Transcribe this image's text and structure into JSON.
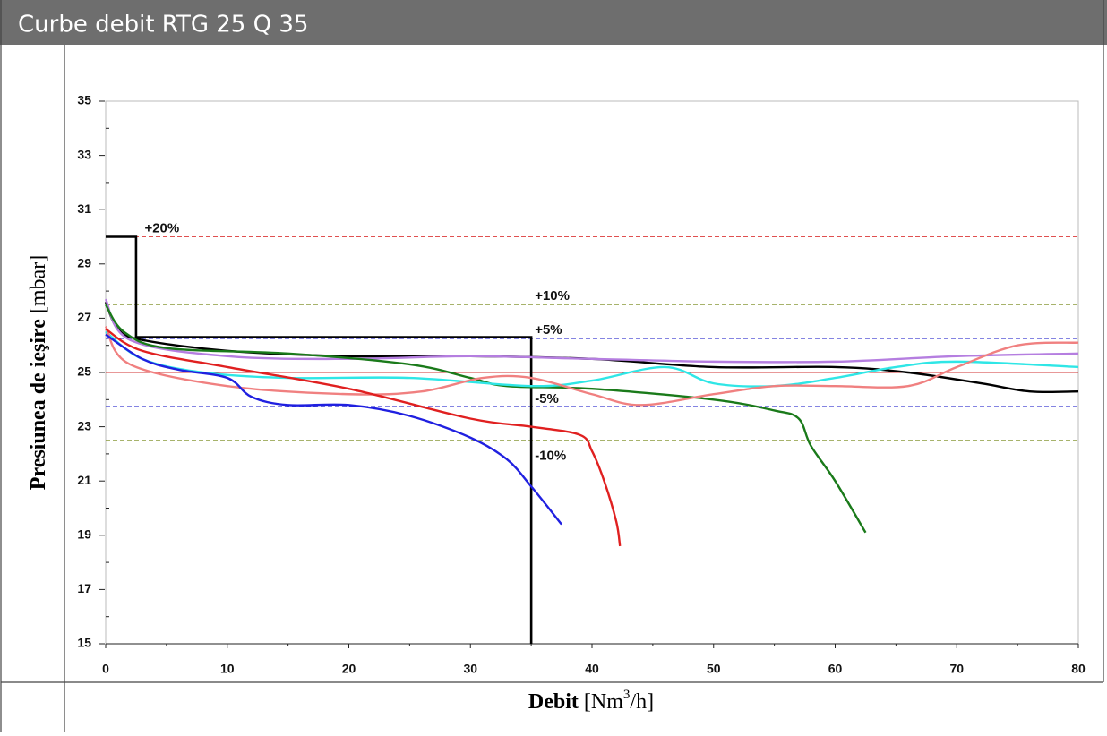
{
  "chart_data": {
    "type": "line",
    "title": "Curbe debit RTG 25 Q 35",
    "y_label": "Presiunea de  ieşire",
    "y_unit": "[mbar]",
    "x_label": "Debit",
    "x_unit_parts": [
      "[Nm",
      "3",
      "/h]"
    ],
    "xlim": [
      0,
      80
    ],
    "xticks": [
      0,
      10,
      20,
      30,
      40,
      50,
      60,
      70,
      80
    ],
    "xminor": [
      5,
      15,
      25,
      35,
      45,
      55,
      65,
      75
    ],
    "ylim": [
      15,
      35
    ],
    "yticks": [
      15,
      17,
      19,
      21,
      23,
      25,
      27,
      29,
      31,
      33,
      35
    ],
    "yminor": [
      16,
      18,
      20,
      22,
      24,
      26,
      28,
      30,
      32,
      34
    ],
    "reference_lines": [
      {
        "value": 30,
        "label": "+20%",
        "color": "#e05050"
      },
      {
        "value": 27.5,
        "label": "+10%",
        "color": "#8a9a3a"
      },
      {
        "value": 26.25,
        "label": "+5%",
        "color": "#3a3ad0"
      },
      {
        "value": 25,
        "color": "#d03030"
      },
      {
        "value": 23.75,
        "label": "-5%",
        "color": "#3a3ad0"
      },
      {
        "value": 22.5,
        "label": "-10%",
        "color": "#8a9a3a"
      }
    ],
    "series": [
      {
        "color": "#000000",
        "x": [
          0,
          2.5,
          2.5,
          35,
          35
        ],
        "values": [
          30,
          30,
          26.3,
          26.3,
          15
        ]
      },
      {
        "color": "#000000",
        "x": [
          0,
          1,
          3,
          10,
          20,
          30,
          40,
          50,
          60,
          66,
          72,
          76,
          80
        ],
        "values": [
          27.6,
          26.6,
          26.2,
          25.8,
          25.6,
          25.6,
          25.5,
          25.2,
          25.2,
          25.0,
          24.6,
          24.3,
          24.3
        ]
      },
      {
        "color": "#b57ee0",
        "x": [
          0,
          2,
          10,
          20,
          30,
          40,
          50,
          60,
          70,
          80
        ],
        "values": [
          27.7,
          26.2,
          25.6,
          25.5,
          25.6,
          25.5,
          25.4,
          25.4,
          25.6,
          25.7
        ]
      },
      {
        "color": "#1a7a1a",
        "x": [
          0,
          1.5,
          5,
          15,
          25,
          30,
          33,
          40,
          50,
          55,
          57,
          58,
          60,
          62.5
        ],
        "values": [
          27.5,
          26.5,
          25.9,
          25.7,
          25.3,
          24.8,
          24.5,
          24.4,
          24.0,
          23.6,
          23.3,
          22.3,
          21,
          19.1
        ]
      },
      {
        "color": "#2fe6e6",
        "x": [
          0,
          3,
          8,
          15,
          25,
          35,
          40,
          46,
          50,
          55,
          60,
          65,
          70,
          80
        ],
        "values": [
          26.5,
          25.5,
          25.0,
          24.8,
          24.8,
          24.5,
          24.7,
          25.2,
          24.6,
          24.5,
          24.8,
          25.2,
          25.4,
          25.2
        ]
      },
      {
        "color": "#f08080",
        "x": [
          0,
          2,
          10,
          20,
          26,
          31,
          35,
          40,
          44,
          50,
          55,
          60,
          66,
          70,
          75,
          80
        ],
        "values": [
          26.7,
          25.3,
          24.5,
          24.2,
          24.3,
          24.8,
          24.8,
          24.2,
          23.8,
          24.2,
          24.5,
          24.5,
          24.5,
          25.2,
          26.0,
          26.1
        ]
      },
      {
        "color": "#e02020",
        "x": [
          0,
          3,
          10,
          20,
          30,
          35,
          39,
          40,
          41,
          42,
          42.3
        ],
        "values": [
          26.6,
          25.8,
          25.2,
          24.4,
          23.3,
          23.0,
          22.7,
          22.1,
          21,
          19.5,
          18.6
        ]
      },
      {
        "color": "#2020e0",
        "x": [
          0,
          3,
          6,
          10,
          12,
          15,
          20,
          25,
          30,
          33,
          35,
          37.5
        ],
        "values": [
          26.4,
          25.5,
          25.1,
          24.8,
          24.1,
          23.8,
          23.8,
          23.4,
          22.6,
          21.8,
          20.8,
          19.4
        ]
      }
    ]
  }
}
